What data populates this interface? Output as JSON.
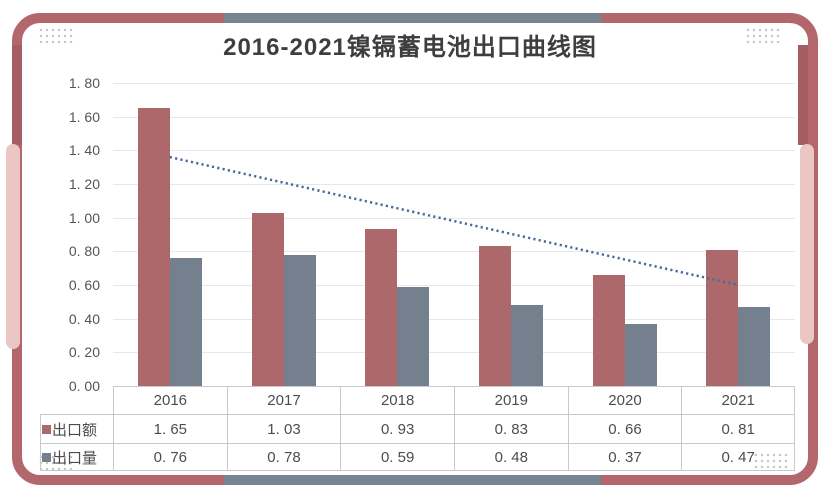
{
  "title": "2016-2021镍镉蓄电池出口曲线图",
  "colors": {
    "frame_border": "#b3676c",
    "frame_accent_gray": "#78848f",
    "frame_side_dark": "#a55c62",
    "frame_side_tab_pink": "#eac6c5",
    "gridline": "#e5e7ea",
    "table_border": "#c9c9c9",
    "text": "#4d4d4d",
    "title_text": "#3e3e3e"
  },
  "chart_data": {
    "type": "bar",
    "title": "2016-2021镍镉蓄电池出口曲线图",
    "categories": [
      "2016",
      "2017",
      "2018",
      "2019",
      "2020",
      "2021"
    ],
    "series": [
      {
        "name": "出口额",
        "color": "#ad686c",
        "values": [
          1.65,
          1.03,
          0.93,
          0.83,
          0.66,
          0.81
        ]
      },
      {
        "name": "出口量",
        "color": "#74808e",
        "values": [
          0.76,
          0.78,
          0.59,
          0.48,
          0.37,
          0.47
        ]
      }
    ],
    "trendline": {
      "color": "#4a6a9e",
      "style": "dotted",
      "start_value": 1.36,
      "end_value": 0.6
    },
    "ylim": [
      0,
      1.8
    ],
    "ytick_step": 0.2,
    "ytick_labels": [
      "0. 00",
      "0. 20",
      "0. 40",
      "0. 60",
      "0. 80",
      "1. 00",
      "1. 20",
      "1. 40",
      "1. 60",
      "1. 80"
    ],
    "grid": true,
    "legend_position": "table-left",
    "value_format": "two-decimals-with-space-after-point"
  }
}
